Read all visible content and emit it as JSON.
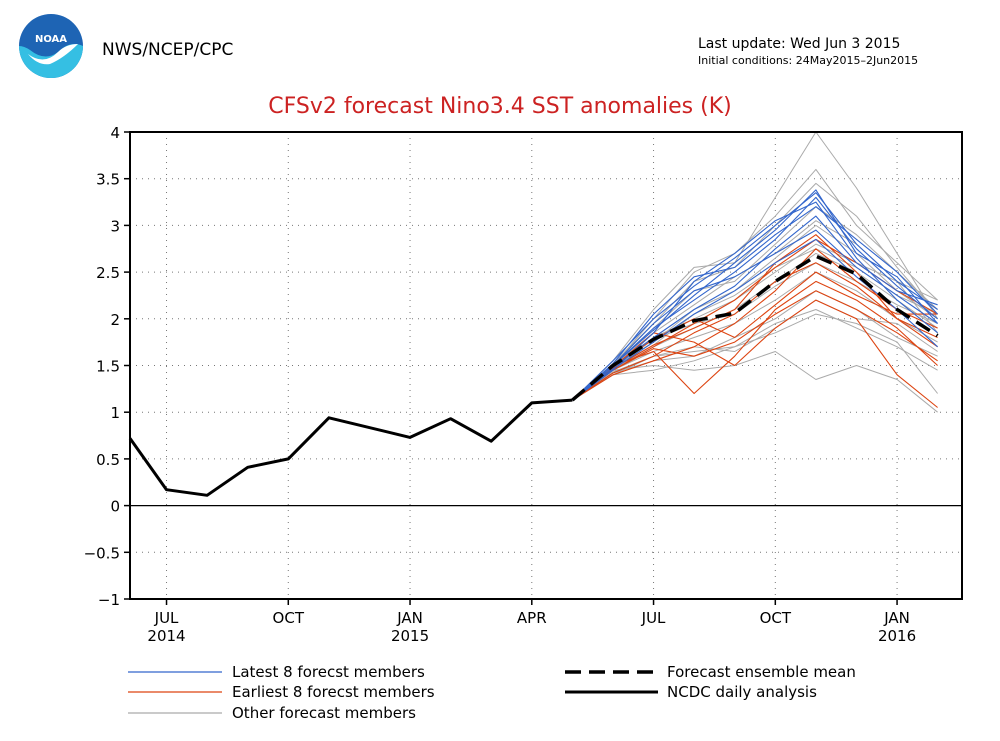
{
  "header": {
    "agency": "NWS/NCEP/CPC",
    "last_update": "Last update: Wed Jun  3 2015",
    "initial_conditions": "Initial conditions: 24May2015–2Jun2015",
    "logo_text": "NOAA"
  },
  "chart_data": {
    "type": "line",
    "title": "CFSv2 forecast Nino3.4 SST anomalies (K)",
    "xlabel": "",
    "ylabel": "",
    "ylim": [
      -1,
      4
    ],
    "xlim": [
      -0.3,
      20.2
    ],
    "grid": true,
    "yticks": [
      -1,
      -0.5,
      0,
      0.5,
      1,
      1.5,
      2,
      2.5,
      3,
      3.5,
      4
    ],
    "ytick_labels": [
      "−1",
      "−0.5",
      "0",
      "0.5",
      "1",
      "1.5",
      "2",
      "2.5",
      "3",
      "3.5",
      "4"
    ],
    "xticks": [
      {
        "x": 0.6,
        "label": "JUL",
        "sub": "2014"
      },
      {
        "x": 3.6,
        "label": "OCT",
        "sub": ""
      },
      {
        "x": 6.6,
        "label": "JAN",
        "sub": "2015"
      },
      {
        "x": 9.6,
        "label": "APR",
        "sub": ""
      },
      {
        "x": 12.6,
        "label": "JUL",
        "sub": ""
      },
      {
        "x": 15.6,
        "label": "OCT",
        "sub": ""
      },
      {
        "x": 18.6,
        "label": "JAN",
        "sub": "2016"
      }
    ],
    "colors": {
      "latest": "#3366cc",
      "earliest": "#dd4411",
      "other": "#aaaaaa",
      "mean": "#000000",
      "analysis": "#000000",
      "title": "#cc2222"
    },
    "analysis": {
      "name": "NCDC daily analysis",
      "x": [
        -0.3,
        0.6,
        1.6,
        2.6,
        3.6,
        4.6,
        6.6,
        7.6,
        8.6,
        9.6,
        10.6
      ],
      "y": [
        0.72,
        0.17,
        0.11,
        0.41,
        0.5,
        0.94,
        0.73,
        0.93,
        0.69,
        1.1,
        1.13
      ]
    },
    "forecast_x": [
      10.6,
      11.6,
      12.6,
      13.6,
      14.6,
      15.6,
      16.6,
      17.6,
      18.6,
      19.6
    ],
    "mean": {
      "name": "Forecast ensemble mean",
      "y": [
        1.13,
        1.5,
        1.78,
        1.98,
        2.06,
        2.4,
        2.67,
        2.48,
        2.1,
        1.82
      ]
    },
    "latest": {
      "name": "Latest 8 forecst members",
      "members": [
        [
          1.13,
          1.55,
          2.0,
          2.35,
          2.65,
          3.0,
          3.35,
          2.8,
          2.4,
          2.1
        ],
        [
          1.13,
          1.5,
          1.9,
          2.2,
          2.5,
          2.85,
          3.3,
          2.75,
          2.35,
          2.0
        ],
        [
          1.13,
          1.45,
          1.85,
          2.4,
          2.7,
          3.05,
          3.25,
          2.65,
          2.2,
          1.85
        ],
        [
          1.13,
          1.5,
          1.95,
          2.3,
          2.45,
          2.7,
          2.95,
          2.55,
          2.25,
          1.95
        ],
        [
          1.13,
          1.48,
          1.8,
          2.1,
          2.35,
          2.75,
          3.1,
          2.6,
          2.3,
          2.15
        ],
        [
          1.13,
          1.52,
          2.05,
          2.45,
          2.55,
          2.9,
          3.2,
          2.85,
          2.5,
          2.05
        ],
        [
          1.13,
          1.46,
          1.75,
          2.05,
          2.3,
          2.6,
          2.85,
          2.45,
          2.1,
          1.7
        ],
        [
          1.13,
          1.5,
          1.88,
          2.25,
          2.6,
          2.95,
          3.38,
          2.7,
          2.45,
          1.95
        ]
      ]
    },
    "earliest": {
      "name": "Earliest 8 forecst members",
      "members": [
        [
          1.13,
          1.45,
          1.7,
          1.95,
          2.2,
          2.55,
          2.85,
          2.6,
          2.3,
          2.05
        ],
        [
          1.13,
          1.5,
          1.65,
          1.2,
          1.6,
          2.1,
          2.4,
          2.2,
          1.9,
          1.5
        ],
        [
          1.13,
          1.4,
          1.55,
          1.7,
          1.95,
          2.3,
          2.75,
          2.4,
          2.1,
          1.9
        ],
        [
          1.13,
          1.48,
          1.85,
          1.75,
          1.5,
          1.9,
          2.2,
          2.0,
          1.4,
          1.05
        ],
        [
          1.13,
          1.42,
          1.6,
          1.85,
          2.05,
          2.4,
          2.6,
          2.35,
          2.0,
          1.8
        ],
        [
          1.13,
          1.5,
          1.78,
          2.0,
          1.8,
          2.15,
          2.5,
          2.25,
          2.05,
          2.05
        ],
        [
          1.13,
          1.45,
          1.68,
          1.6,
          1.75,
          2.05,
          2.3,
          2.1,
          1.85,
          1.55
        ],
        [
          1.13,
          1.47,
          1.72,
          1.9,
          2.1,
          2.6,
          2.9,
          2.5,
          2.0,
          1.7
        ]
      ]
    },
    "other": {
      "name": "Other forecast members",
      "members": [
        [
          1.13,
          1.55,
          2.1,
          2.55,
          2.6,
          3.3,
          4.0,
          3.4,
          2.7,
          2.0
        ],
        [
          1.13,
          1.5,
          2.0,
          2.5,
          2.7,
          3.1,
          3.6,
          3.0,
          2.6,
          2.2
        ],
        [
          1.13,
          1.45,
          1.5,
          1.45,
          1.5,
          1.65,
          1.35,
          1.5,
          1.35,
          1.0
        ],
        [
          1.13,
          1.5,
          1.8,
          2.0,
          2.2,
          2.5,
          2.8,
          2.6,
          2.4,
          2.2
        ],
        [
          1.13,
          1.4,
          1.6,
          1.65,
          1.7,
          1.95,
          2.1,
          1.9,
          1.7,
          1.45
        ],
        [
          1.13,
          1.45,
          1.7,
          1.9,
          2.1,
          2.4,
          2.7,
          2.5,
          2.2,
          1.9
        ],
        [
          1.13,
          1.5,
          1.9,
          2.3,
          2.4,
          2.8,
          3.2,
          2.9,
          2.5,
          2.1
        ],
        [
          1.13,
          1.42,
          1.55,
          1.6,
          1.8,
          2.0,
          2.3,
          2.1,
          1.8,
          1.6
        ],
        [
          1.13,
          1.48,
          1.75,
          2.1,
          2.3,
          2.65,
          3.0,
          2.7,
          2.3,
          2.0
        ],
        [
          1.13,
          1.4,
          1.45,
          1.55,
          1.7,
          1.85,
          2.05,
          1.95,
          1.75,
          1.2
        ],
        [
          1.13,
          1.5,
          1.85,
          2.15,
          2.45,
          2.7,
          3.05,
          2.8,
          2.4,
          1.85
        ],
        [
          1.13,
          1.45,
          1.65,
          1.8,
          1.95,
          2.2,
          2.5,
          2.3,
          2.0,
          1.75
        ],
        [
          1.13,
          1.52,
          1.95,
          2.4,
          2.55,
          3.0,
          3.45,
          3.1,
          2.55,
          2.05
        ],
        [
          1.13,
          1.43,
          1.6,
          1.7,
          1.65,
          1.9,
          2.2,
          2.0,
          1.95,
          1.65
        ],
        [
          1.13,
          1.47,
          1.78,
          1.95,
          2.05,
          2.35,
          2.6,
          2.4,
          2.15,
          1.95
        ],
        [
          1.13,
          1.46,
          1.72,
          2.05,
          2.25,
          2.55,
          2.75,
          2.55,
          2.25,
          2.05
        ]
      ]
    },
    "legend": {
      "placement": "bottom",
      "items": [
        {
          "key": "latest",
          "label": "Latest 8 forecst members",
          "style": "thin"
        },
        {
          "key": "mean",
          "label": "Forecast ensemble mean",
          "style": "dashed"
        },
        {
          "key": "earliest",
          "label": "Earliest 8 forecst members",
          "style": "thin"
        },
        {
          "key": "analysis",
          "label": "NCDC daily analysis",
          "style": "thick"
        },
        {
          "key": "other",
          "label": "Other forecast members",
          "style": "thin"
        }
      ]
    }
  }
}
